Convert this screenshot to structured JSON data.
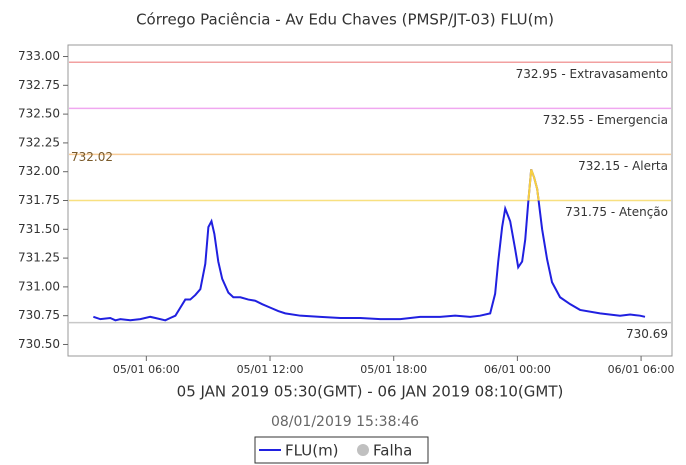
{
  "chart_data": {
    "type": "line",
    "title": "Córrego Paciência - Av Edu Chaves (PMSP/JT-03) FLU(m)",
    "x_label": "05 JAN 2019 05:30(GMT) - 06 JAN 2019 08:10(GMT)",
    "subtitle": "08/01/2019 15:38:46",
    "xlim": [
      2.2,
      31.5
    ],
    "xticks": [
      {
        "value": 6,
        "label": "05/01 06:00"
      },
      {
        "value": 12,
        "label": "05/01 12:00"
      },
      {
        "value": 18,
        "label": "05/01 18:00"
      },
      {
        "value": 24,
        "label": "06/01 00:00"
      },
      {
        "value": 30,
        "label": "06/01 06:00"
      }
    ],
    "ylim": [
      730.4,
      733.1
    ],
    "yticks": [
      {
        "value": 730.5,
        "label": "730.50"
      },
      {
        "value": 730.75,
        "label": "730.75"
      },
      {
        "value": 731,
        "label": "731.00"
      },
      {
        "value": 731.25,
        "label": "731.25"
      },
      {
        "value": 731.5,
        "label": "731.50"
      },
      {
        "value": 731.75,
        "label": "731.75"
      },
      {
        "value": 732,
        "label": "732.00"
      },
      {
        "value": 732.25,
        "label": "732.25"
      },
      {
        "value": 732.5,
        "label": "732.50"
      },
      {
        "value": 732.75,
        "label": "732.75"
      },
      {
        "value": 733,
        "label": "733.00"
      }
    ],
    "thresholds": [
      {
        "value": 732.95,
        "label": "732.95 - Extravasamento",
        "color": "#f2a0a0"
      },
      {
        "value": 732.55,
        "label": "732.55 - Emergencia",
        "color": "#f0a8f0"
      },
      {
        "value": 732.15,
        "label": "732.15 - Alerta",
        "color": "#f8cc98"
      },
      {
        "value": 731.75,
        "label": "731.75 - Atenção",
        "color": "#f8e080"
      },
      {
        "value": 730.69,
        "label": "730.69",
        "color": "#c8c8c8"
      }
    ],
    "max_label": 732.02,
    "highlight_color": "#f8d040",
    "x": [
      3.43,
      3.77,
      4.25,
      4.5,
      4.74,
      5.22,
      5.71,
      6.19,
      6.44,
      6.92,
      7.16,
      7.41,
      7.65,
      7.89,
      8.13,
      8.38,
      8.62,
      8.86,
      9.01,
      9.16,
      9.3,
      9.49,
      9.68,
      9.98,
      10.22,
      10.56,
      10.95,
      11.28,
      11.62,
      12.01,
      12.4,
      12.74,
      13.47,
      14.44,
      15.41,
      16.38,
      17.35,
      18.32,
      19.28,
      20.25,
      20.98,
      21.71,
      22.19,
      22.68,
      22.92,
      23.07,
      23.26,
      23.41,
      23.65,
      23.89,
      24.04,
      24.23,
      24.38,
      24.52,
      24.67,
      24.81,
      24.96,
      25.2,
      25.44,
      25.68,
      26.07,
      26.56,
      27.04,
      28.01,
      28.98,
      29.47,
      29.95,
      30.19
    ],
    "series": [
      {
        "name": "FLU(m)",
        "color": "#2020e0",
        "values": [
          730.74,
          730.72,
          730.73,
          730.71,
          730.72,
          730.71,
          730.72,
          730.74,
          730.73,
          730.71,
          730.73,
          730.75,
          730.82,
          730.89,
          730.89,
          730.93,
          730.98,
          731.2,
          731.52,
          731.57,
          731.46,
          731.22,
          731.07,
          730.95,
          730.91,
          730.91,
          730.89,
          730.88,
          730.85,
          730.82,
          730.79,
          730.77,
          730.75,
          730.74,
          730.73,
          730.73,
          730.72,
          730.72,
          730.74,
          730.74,
          730.75,
          730.74,
          730.75,
          730.77,
          730.94,
          731.22,
          731.52,
          731.68,
          731.57,
          731.33,
          731.17,
          731.22,
          731.41,
          731.72,
          732.02,
          731.95,
          731.85,
          731.5,
          731.24,
          731.04,
          730.91,
          730.85,
          730.8,
          730.77,
          730.75,
          730.76,
          730.75,
          730.74
        ]
      }
    ],
    "extra_legend": {
      "name": "Falha",
      "color": "#c0c0c0"
    }
  }
}
